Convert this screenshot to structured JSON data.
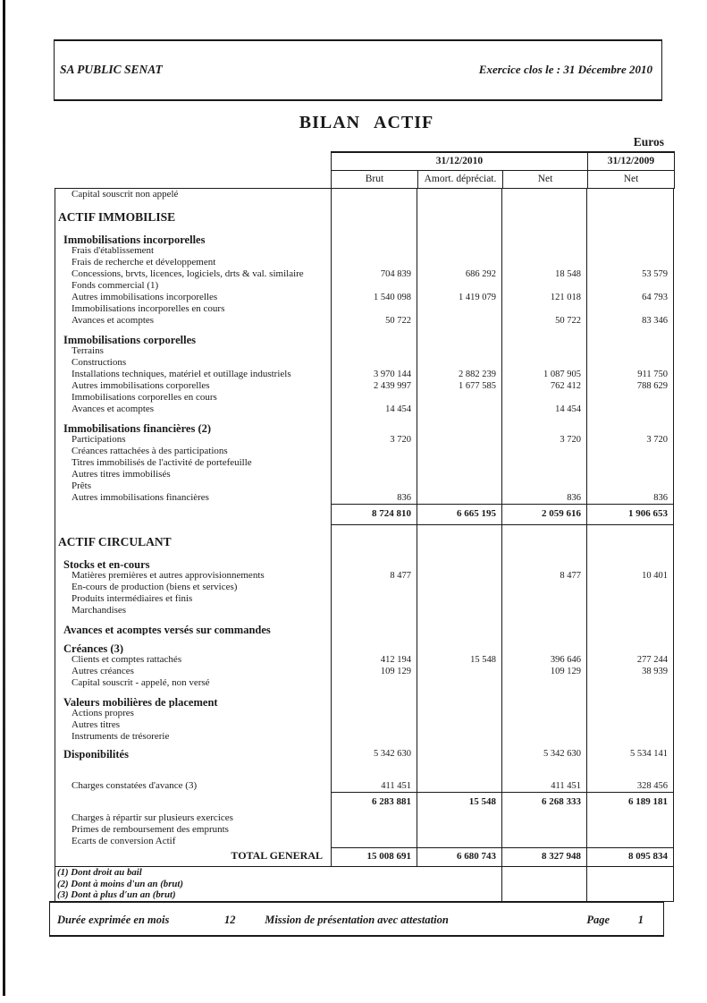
{
  "header": {
    "company": "SA PUBLIC SENAT",
    "exercice": "Exercice clos le :  31 Décembre 2010"
  },
  "title": "BILAN ACTIF",
  "currency": "Euros",
  "table": {
    "col_headers": {
      "period1": "31/12/2010",
      "period2": "31/12/2009",
      "sub": [
        "Brut",
        "Amort. dépréciat.",
        "Net",
        "Net"
      ]
    },
    "rows": [
      {
        "t": "item",
        "l": "Capital souscrit non appelé",
        "v": [
          "",
          "",
          "",
          ""
        ]
      },
      {
        "t": "sec",
        "l": "ACTIF IMMOBILISE",
        "v": [
          "",
          "",
          "",
          ""
        ]
      },
      {
        "t": "sub",
        "l": "Immobilisations incorporelles",
        "v": [
          "",
          "",
          "",
          ""
        ]
      },
      {
        "t": "item",
        "l": "Frais d'établissement",
        "v": [
          "",
          "",
          "",
          ""
        ]
      },
      {
        "t": "item",
        "l": "Frais de recherche et développement",
        "v": [
          "",
          "",
          "",
          ""
        ]
      },
      {
        "t": "item",
        "l": "Concessions, brvts, licences, logiciels, drts & val. similaire",
        "v": [
          "704 839",
          "686 292",
          "18 548",
          "53 579"
        ]
      },
      {
        "t": "item",
        "l": "Fonds commercial (1)",
        "v": [
          "",
          "",
          "",
          ""
        ]
      },
      {
        "t": "item",
        "l": "Autres immobilisations incorporelles",
        "v": [
          "1 540 098",
          "1 419 079",
          "121 018",
          "64 793"
        ]
      },
      {
        "t": "item",
        "l": "Immobilisations incorporelles en cours",
        "v": [
          "",
          "",
          "",
          ""
        ]
      },
      {
        "t": "item",
        "l": "Avances et acomptes",
        "v": [
          "50 722",
          "",
          "50 722",
          "83 346"
        ]
      },
      {
        "t": "sub",
        "l": "Immobilisations corporelles",
        "v": [
          "",
          "",
          "",
          ""
        ]
      },
      {
        "t": "item",
        "l": "Terrains",
        "v": [
          "",
          "",
          "",
          ""
        ]
      },
      {
        "t": "item",
        "l": "Constructions",
        "v": [
          "",
          "",
          "",
          ""
        ]
      },
      {
        "t": "item",
        "l": "Installations techniques, matériel et outillage industriels",
        "v": [
          "3 970 144",
          "2 882 239",
          "1 087 905",
          "911 750"
        ]
      },
      {
        "t": "item",
        "l": "Autres immobilisations corporelles",
        "v": [
          "2 439 997",
          "1 677 585",
          "762 412",
          "788 629"
        ]
      },
      {
        "t": "item",
        "l": "Immobilisations corporelles en cours",
        "v": [
          "",
          "",
          "",
          ""
        ]
      },
      {
        "t": "item",
        "l": "Avances et acomptes",
        "v": [
          "14 454",
          "",
          "14 454",
          ""
        ]
      },
      {
        "t": "sub",
        "l": "Immobilisations financières (2)",
        "v": [
          "",
          "",
          "",
          ""
        ]
      },
      {
        "t": "item",
        "l": "Participations",
        "v": [
          "3 720",
          "",
          "3 720",
          "3 720"
        ]
      },
      {
        "t": "item",
        "l": "Créances rattachées à des participations",
        "v": [
          "",
          "",
          "",
          ""
        ]
      },
      {
        "t": "item",
        "l": "Titres immobilisés de l'activité de portefeuille",
        "v": [
          "",
          "",
          "",
          ""
        ]
      },
      {
        "t": "item",
        "l": "Autres titres immobilisés",
        "v": [
          "",
          "",
          "",
          ""
        ]
      },
      {
        "t": "item",
        "l": "Prêts",
        "v": [
          "",
          "",
          "",
          ""
        ]
      },
      {
        "t": "item",
        "l": "Autres immobilisations financières",
        "v": [
          "836",
          "",
          "836",
          "836"
        ]
      },
      {
        "t": "subtotal1",
        "l": "",
        "v": [
          "8 724 810",
          "6 665 195",
          "2 059 616",
          "1 906 653"
        ]
      },
      {
        "t": "sec",
        "l": "ACTIF CIRCULANT",
        "v": [
          "",
          "",
          "",
          ""
        ]
      },
      {
        "t": "sub",
        "l": "Stocks et en-cours",
        "v": [
          "",
          "",
          "",
          ""
        ]
      },
      {
        "t": "item",
        "l": "Matières premières et autres approvisionnements",
        "v": [
          "8 477",
          "",
          "8 477",
          "10 401"
        ]
      },
      {
        "t": "item",
        "l": "En-cours de production (biens et services)",
        "v": [
          "",
          "",
          "",
          ""
        ]
      },
      {
        "t": "item",
        "l": "Produits intermédiaires et finis",
        "v": [
          "",
          "",
          "",
          ""
        ]
      },
      {
        "t": "item",
        "l": "Marchandises",
        "v": [
          "",
          "",
          "",
          ""
        ]
      },
      {
        "t": "sub",
        "l": "Avances et acomptes versés sur commandes",
        "v": [
          "",
          "",
          "",
          ""
        ]
      },
      {
        "t": "sub",
        "l": "Créances (3)",
        "v": [
          "",
          "",
          "",
          ""
        ]
      },
      {
        "t": "item",
        "l": "Clients et comptes rattachés",
        "v": [
          "412 194",
          "15 548",
          "396 646",
          "277 244"
        ]
      },
      {
        "t": "item",
        "l": "Autres créances",
        "v": [
          "109 129",
          "",
          "109 129",
          "38 939"
        ]
      },
      {
        "t": "item",
        "l": "Capital souscrit - appelé, non versé",
        "v": [
          "",
          "",
          "",
          ""
        ]
      },
      {
        "t": "sub",
        "l": "Valeurs mobilières de placement",
        "v": [
          "",
          "",
          "",
          ""
        ]
      },
      {
        "t": "item",
        "l": "Actions propres",
        "v": [
          "",
          "",
          "",
          ""
        ]
      },
      {
        "t": "item",
        "l": "Autres titres",
        "v": [
          "",
          "",
          "",
          ""
        ]
      },
      {
        "t": "item",
        "l": "Instruments de trésorerie",
        "v": [
          "",
          "",
          "",
          ""
        ]
      },
      {
        "t": "subv",
        "l": "Disponibilités",
        "v": [
          "5 342 630",
          "",
          "5 342 630",
          "5 534 141"
        ]
      },
      {
        "t": "blank",
        "l": "",
        "v": [
          "",
          "",
          "",
          ""
        ]
      },
      {
        "t": "item",
        "l": "Charges constatées d'avance (3)",
        "v": [
          "411 451",
          "",
          "411 451",
          "328 456"
        ]
      },
      {
        "t": "subtotal",
        "l": "",
        "v": [
          "6 283 881",
          "15 548",
          "6 268 333",
          "6 189 181"
        ]
      },
      {
        "t": "item",
        "l": "Charges à répartir sur plusieurs exercices",
        "v": [
          "",
          "",
          "",
          ""
        ]
      },
      {
        "t": "item",
        "l": "Primes de remboursement des emprunts",
        "v": [
          "",
          "",
          "",
          ""
        ]
      },
      {
        "t": "item",
        "l": "Ecarts de conversion Actif",
        "v": [
          "",
          "",
          "",
          ""
        ]
      },
      {
        "t": "total",
        "l": "TOTAL GENERAL",
        "v": [
          "15 008 691",
          "6 680 743",
          "8 327 948",
          "8 095 834"
        ]
      }
    ]
  },
  "footnotes": [
    "(1) Dont droit au bail",
    "(2) Dont à moins d'un an (brut)",
    "(3) Dont à plus d'un an (brut)"
  ],
  "footer": {
    "duration_label": "Durée exprimée en mois",
    "duration_value": "12",
    "center": "Mission de présentation avec attestation",
    "page_label": "Page",
    "page_number": "1"
  }
}
